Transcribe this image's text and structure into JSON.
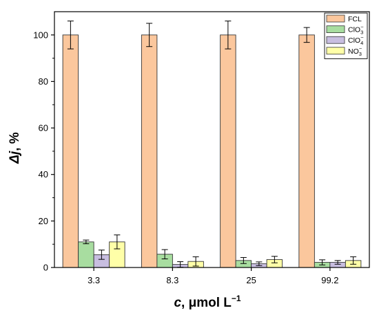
{
  "chart_data": {
    "type": "bar",
    "categories": [
      "3.3",
      "8.3",
      "25",
      "99.2"
    ],
    "series": [
      {
        "name": "FCL",
        "values": [
          100,
          100,
          100,
          100
        ],
        "errors": [
          6,
          5,
          6,
          3.2
        ],
        "color": "#FBC79D"
      },
      {
        "name": "ClO3−",
        "name_base": "ClO",
        "name_sub": "3",
        "name_sup": "−",
        "values": [
          11,
          5.7,
          3.0,
          2.2
        ],
        "errors": [
          0.8,
          2.0,
          1.3,
          1.1
        ],
        "color": "#A8DDA0"
      },
      {
        "name": "ClO4−",
        "name_base": "ClO",
        "name_sub": "4",
        "name_sup": "−",
        "values": [
          5.5,
          1.3,
          1.6,
          2.2
        ],
        "errors": [
          2.0,
          1.2,
          0.8,
          0.8
        ],
        "color": "#C8BEE0"
      },
      {
        "name": "NO3−",
        "name_base": "NO",
        "name_sub": "3",
        "name_sup": "−",
        "values": [
          11,
          2.6,
          3.4,
          3.0
        ],
        "errors": [
          3.0,
          2.0,
          1.4,
          1.6
        ],
        "color": "#FFFFA8"
      }
    ],
    "ylim": [
      0,
      110
    ],
    "yticks": [
      "0",
      "20",
      "40",
      "60",
      "80",
      "100"
    ],
    "ytick_values": [
      0,
      20,
      40,
      60,
      80,
      100
    ],
    "ylabel": "Δj, %",
    "xlabel": "c, μmol L−1",
    "xlabel_parts": {
      "var": "c",
      "rest": ", μmol L",
      "sup": "−1"
    },
    "ylabel_parts": {
      "var": "Δj",
      "rest": ", %"
    },
    "legend_position": "top-right",
    "grid": false
  }
}
